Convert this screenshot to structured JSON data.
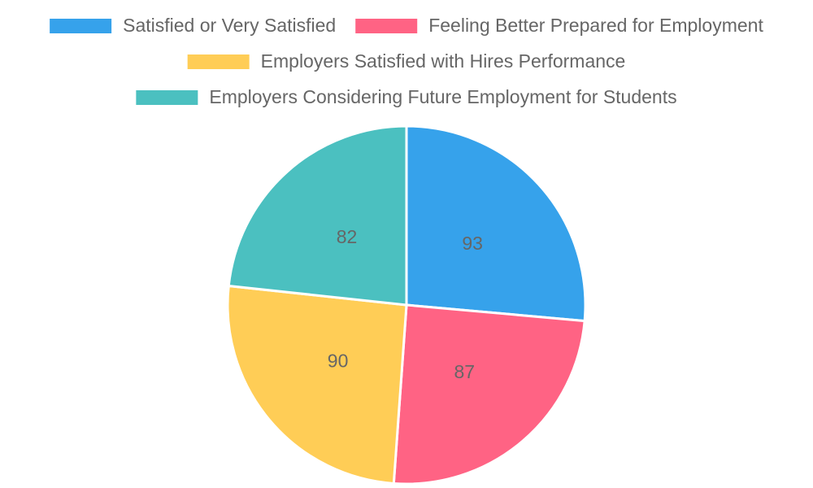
{
  "chart_data": {
    "type": "pie",
    "categories": [
      "Satisfied or Very Satisfied",
      "Feeling Better Prepared for Employment",
      "Employers Satisfied with Hires Performance",
      "Employers Considering Future Employment for Students"
    ],
    "values": [
      93,
      87,
      90,
      82
    ],
    "colors": [
      "#36a2eb",
      "#ff6384",
      "#ffcd56",
      "#4bc0c0"
    ],
    "legend": "top"
  }
}
